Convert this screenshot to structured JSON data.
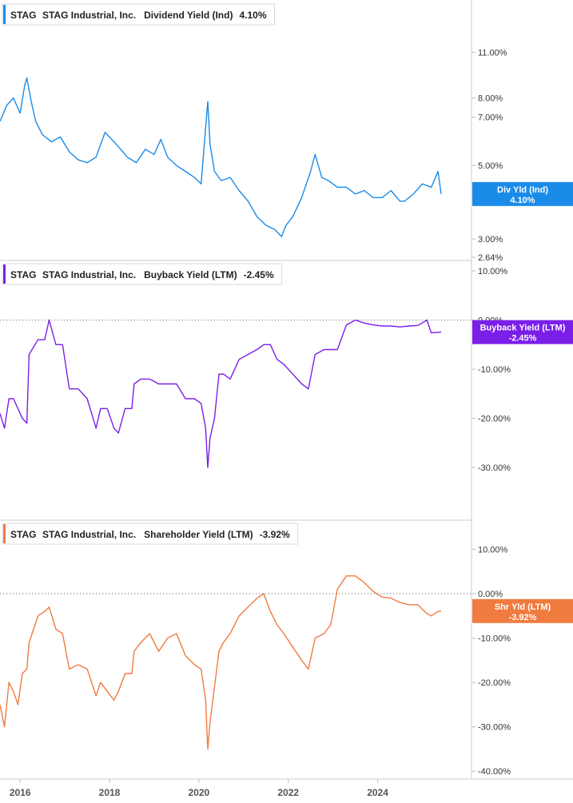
{
  "chart_data": [
    {
      "type": "line",
      "ticker": "STAG",
      "company": "STAG Industrial, Inc.",
      "metric": "Dividend Yield (Ind)",
      "current": "4.10%",
      "tag_label": "Div Yld (Ind)",
      "color": "#1a8be8",
      "scale": "log",
      "ylim": [
        2.64,
        14
      ],
      "yticks": [
        {
          "v": 11,
          "label": "11.00%"
        },
        {
          "v": 8,
          "label": "8.00%"
        },
        {
          "v": 7,
          "label": "7.00%"
        },
        {
          "v": 5,
          "label": "5.00%"
        },
        {
          "v": 3,
          "label": "3.00%"
        },
        {
          "v": 2.64,
          "label": "2.64%"
        }
      ],
      "series": [
        {
          "x": [
            2015.55,
            2015.7,
            2015.85,
            2016.0,
            2016.1,
            2016.15,
            2016.25,
            2016.35,
            2016.5,
            2016.7,
            2016.9,
            2017.1,
            2017.3,
            2017.5,
            2017.7,
            2017.9,
            2018.1,
            2018.25,
            2018.4,
            2018.6,
            2018.8,
            2019.0,
            2019.15,
            2019.3,
            2019.5,
            2019.7,
            2019.9,
            2020.05,
            2020.15,
            2020.2,
            2020.25,
            2020.35,
            2020.5,
            2020.7,
            2020.9,
            2021.1,
            2021.3,
            2021.5,
            2021.7,
            2021.85,
            2021.95,
            2022.1,
            2022.3,
            2022.5,
            2022.6,
            2022.75,
            2022.9,
            2023.1,
            2023.3,
            2023.5,
            2023.7,
            2023.9,
            2024.1,
            2024.3,
            2024.5,
            2024.6,
            2024.8,
            2025.0,
            2025.2,
            2025.35,
            2025.42
          ],
          "values": [
            6.8,
            7.6,
            8.0,
            7.2,
            8.7,
            9.2,
            7.8,
            6.8,
            6.2,
            5.9,
            6.1,
            5.5,
            5.2,
            5.1,
            5.3,
            6.3,
            5.9,
            5.6,
            5.3,
            5.1,
            5.6,
            5.4,
            6.0,
            5.3,
            5.0,
            4.8,
            4.6,
            4.4,
            6.5,
            7.8,
            5.8,
            4.8,
            4.5,
            4.6,
            4.2,
            3.9,
            3.5,
            3.3,
            3.2,
            3.05,
            3.3,
            3.5,
            4.0,
            4.8,
            5.4,
            4.6,
            4.5,
            4.3,
            4.3,
            4.1,
            4.2,
            4.0,
            4.0,
            4.2,
            3.9,
            3.9,
            4.1,
            4.4,
            4.3,
            4.8,
            4.1
          ]
        }
      ]
    },
    {
      "type": "line",
      "ticker": "STAG",
      "company": "STAG Industrial, Inc.",
      "metric": "Buyback Yield (LTM)",
      "current": "-2.45%",
      "tag_label": "Buyback Yield (LTM)",
      "color": "#7b1fe8",
      "scale": "linear",
      "ylim": [
        -36,
        10.5
      ],
      "yticks": [
        {
          "v": 10,
          "label": "10.00%"
        },
        {
          "v": 0,
          "label": "0.00%"
        },
        {
          "v": -10,
          "label": "-10.00%"
        },
        {
          "v": -20,
          "label": "-20.00%"
        },
        {
          "v": -30,
          "label": "-30.00%"
        }
      ],
      "series": [
        {
          "x": [
            2015.55,
            2015.65,
            2015.75,
            2015.85,
            2015.95,
            2016.05,
            2016.15,
            2016.2,
            2016.4,
            2016.55,
            2016.65,
            2016.8,
            2016.95,
            2017.1,
            2017.3,
            2017.5,
            2017.7,
            2017.8,
            2017.95,
            2018.1,
            2018.2,
            2018.35,
            2018.5,
            2018.55,
            2018.7,
            2018.9,
            2019.1,
            2019.3,
            2019.5,
            2019.7,
            2019.9,
            2020.05,
            2020.15,
            2020.2,
            2020.25,
            2020.35,
            2020.45,
            2020.55,
            2020.7,
            2020.9,
            2021.1,
            2021.3,
            2021.45,
            2021.6,
            2021.75,
            2021.9,
            2022.1,
            2022.3,
            2022.45,
            2022.6,
            2022.8,
            2022.95,
            2023.1,
            2023.3,
            2023.5,
            2023.7,
            2023.9,
            2024.1,
            2024.3,
            2024.5,
            2024.7,
            2024.9,
            2025.1,
            2025.2,
            2025.35,
            2025.42
          ],
          "values": [
            -19,
            -22,
            -16,
            -16,
            -18,
            -20,
            -21,
            -7,
            -4,
            -4,
            0,
            -5,
            -5,
            -14,
            -14,
            -16,
            -22,
            -18,
            -18,
            -22,
            -23,
            -18,
            -18,
            -13,
            -12,
            -12,
            -13,
            -13,
            -13,
            -16,
            -16,
            -17,
            -22,
            -30,
            -24,
            -20,
            -11,
            -11,
            -12,
            -8,
            -7,
            -6,
            -5,
            -5,
            -8,
            -9,
            -11,
            -13,
            -14,
            -7,
            -6,
            -6,
            -6,
            -1,
            0,
            -0.6,
            -1,
            -1.2,
            -1.2,
            -1.4,
            -1.2,
            -1.1,
            0,
            -2.6,
            -2.5,
            -2.45
          ]
        }
      ]
    },
    {
      "type": "line",
      "ticker": "STAG",
      "company": "STAG Industrial, Inc.",
      "metric": "Shareholder Yield (LTM)",
      "current": "-3.92%",
      "tag_label": "Shr Yld (LTM)",
      "color": "#f07b3f",
      "scale": "linear",
      "ylim": [
        -40.5,
        13.5
      ],
      "yticks": [
        {
          "v": 10,
          "label": "10.00%"
        },
        {
          "v": 0,
          "label": "0.00%"
        },
        {
          "v": -10,
          "label": "-10.00%"
        },
        {
          "v": -20,
          "label": "-20.00%"
        },
        {
          "v": -30,
          "label": "-30.00%"
        },
        {
          "v": -40,
          "label": "-40.00%"
        }
      ],
      "series": [
        {
          "x": [
            2015.55,
            2015.65,
            2015.75,
            2015.85,
            2015.95,
            2016.05,
            2016.15,
            2016.2,
            2016.4,
            2016.55,
            2016.65,
            2016.8,
            2016.95,
            2017.1,
            2017.3,
            2017.5,
            2017.7,
            2017.8,
            2017.95,
            2018.1,
            2018.2,
            2018.35,
            2018.5,
            2018.55,
            2018.7,
            2018.9,
            2019.1,
            2019.3,
            2019.5,
            2019.7,
            2019.9,
            2020.05,
            2020.15,
            2020.2,
            2020.25,
            2020.35,
            2020.45,
            2020.55,
            2020.7,
            2020.9,
            2021.1,
            2021.3,
            2021.45,
            2021.6,
            2021.75,
            2021.9,
            2022.1,
            2022.3,
            2022.45,
            2022.6,
            2022.8,
            2022.95,
            2023.1,
            2023.3,
            2023.5,
            2023.7,
            2023.9,
            2024.1,
            2024.3,
            2024.5,
            2024.7,
            2024.9,
            2025.1,
            2025.2,
            2025.35,
            2025.42
          ],
          "values": [
            -25,
            -30,
            -20,
            -22,
            -25,
            -18,
            -17,
            -11,
            -5,
            -4,
            -3,
            -8,
            -9,
            -17,
            -16,
            -17,
            -23,
            -20,
            -22,
            -24,
            -22,
            -18,
            -18,
            -13,
            -11,
            -9,
            -13,
            -10,
            -9,
            -14,
            -16,
            -17,
            -24,
            -35,
            -29,
            -21,
            -13,
            -11,
            -9,
            -5,
            -3,
            -1,
            0,
            -4,
            -7,
            -9,
            -12,
            -15,
            -17,
            -10,
            -9,
            -7,
            1,
            4,
            4,
            2.5,
            0.5,
            -0.8,
            -1,
            -2,
            -2.5,
            -2.5,
            -4.5,
            -5,
            -4,
            -3.92
          ]
        }
      ]
    }
  ],
  "x_axis": {
    "ticks": [
      {
        "v": 2016,
        "label": "2016"
      },
      {
        "v": 2018,
        "label": "2018"
      },
      {
        "v": 2020,
        "label": "2020"
      },
      {
        "v": 2022,
        "label": "2022"
      },
      {
        "v": 2024,
        "label": "2024"
      }
    ],
    "range": [
      2015.55,
      2026.1
    ]
  },
  "zero_line_style": "dotted"
}
